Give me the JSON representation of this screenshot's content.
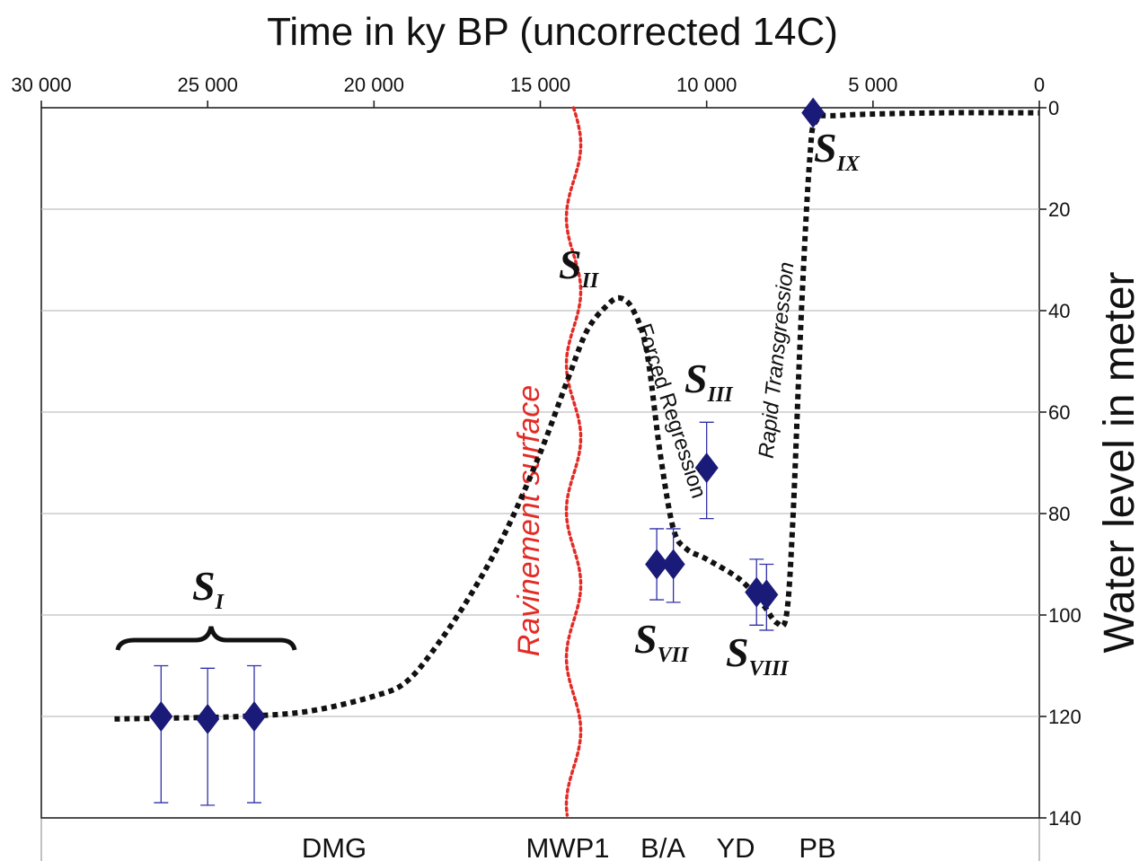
{
  "chart_data": {
    "type": "scatter",
    "title": "Time in ky BP (uncorrected 14C)",
    "ylabel": "Water level in meter",
    "xlim": [
      30000,
      0
    ],
    "ylim": [
      0,
      140
    ],
    "x_ticks": [
      "30 000",
      "25 000",
      "20 000",
      "15 000",
      "10 000",
      "5 000",
      "0"
    ],
    "x_tick_values": [
      30000,
      25000,
      20000,
      15000,
      10000,
      5000,
      0
    ],
    "y_ticks": [
      "0",
      "20",
      "40",
      "60",
      "80",
      "100",
      "120",
      "140"
    ],
    "y_tick_values": [
      0,
      20,
      40,
      60,
      80,
      100,
      120,
      140
    ],
    "y_inverted": true,
    "grid": "horizontal",
    "points": [
      {
        "x": 26400,
        "y": 120,
        "err_low": 110,
        "err_high": 137
      },
      {
        "x": 25000,
        "y": 120.5,
        "err_low": 110.5,
        "err_high": 137.5
      },
      {
        "x": 23600,
        "y": 120,
        "err_low": 110,
        "err_high": 137
      },
      {
        "x": 11500,
        "y": 90,
        "err_low": 83,
        "err_high": 97
      },
      {
        "x": 11000,
        "y": 90,
        "err_low": 83,
        "err_high": 97.5
      },
      {
        "x": 10000,
        "y": 71,
        "err_low": 62,
        "err_high": 81
      },
      {
        "x": 8500,
        "y": 95.5,
        "err_low": 89,
        "err_high": 102
      },
      {
        "x": 8200,
        "y": 96,
        "err_low": 90,
        "err_high": 103
      },
      {
        "x": 6800,
        "y": 1,
        "err_low": 1,
        "err_high": 1
      }
    ],
    "curve": [
      [
        27800,
        120.5
      ],
      [
        26000,
        120.3
      ],
      [
        24000,
        120
      ],
      [
        22000,
        119
      ],
      [
        20000,
        116
      ],
      [
        19000,
        113
      ],
      [
        18000,
        105
      ],
      [
        17000,
        95
      ],
      [
        16000,
        83
      ],
      [
        15000,
        68
      ],
      [
        14200,
        54
      ],
      [
        13600,
        44
      ],
      [
        13000,
        39
      ],
      [
        12600,
        37.5
      ],
      [
        12200,
        40
      ],
      [
        11800,
        48
      ],
      [
        11400,
        68
      ],
      [
        11000,
        83
      ],
      [
        10600,
        87
      ],
      [
        10000,
        89
      ],
      [
        9000,
        93
      ],
      [
        8300,
        98
      ],
      [
        7900,
        101.5
      ],
      [
        7600,
        100
      ],
      [
        7400,
        80
      ],
      [
        7150,
        40
      ],
      [
        6900,
        10
      ],
      [
        6700,
        2.5
      ],
      [
        6000,
        1.5
      ],
      [
        3000,
        1
      ],
      [
        0,
        1
      ]
    ],
    "ravinement_x": 14000,
    "curve_labels": {
      "forced": "Forced Regression",
      "rapid": "Rapid Transgression",
      "ravinement": "Ravinement surface"
    },
    "stage_labels": [
      {
        "main": "S",
        "sub": "I"
      },
      {
        "main": "S",
        "sub": "II"
      },
      {
        "main": "S",
        "sub": "III"
      },
      {
        "main": "S",
        "sub": "VII"
      },
      {
        "main": "S",
        "sub": "VIII"
      },
      {
        "main": "S",
        "sub": "IX"
      }
    ],
    "periods": [
      "DMG",
      "MWP1",
      "B/A",
      "YD",
      "PB"
    ],
    "colors": {
      "marker": "#1a1a78",
      "errorbar": "#3030a8",
      "curve": "#111111",
      "ravinement": "#e32b26",
      "grid": "#c0c0c0"
    }
  }
}
